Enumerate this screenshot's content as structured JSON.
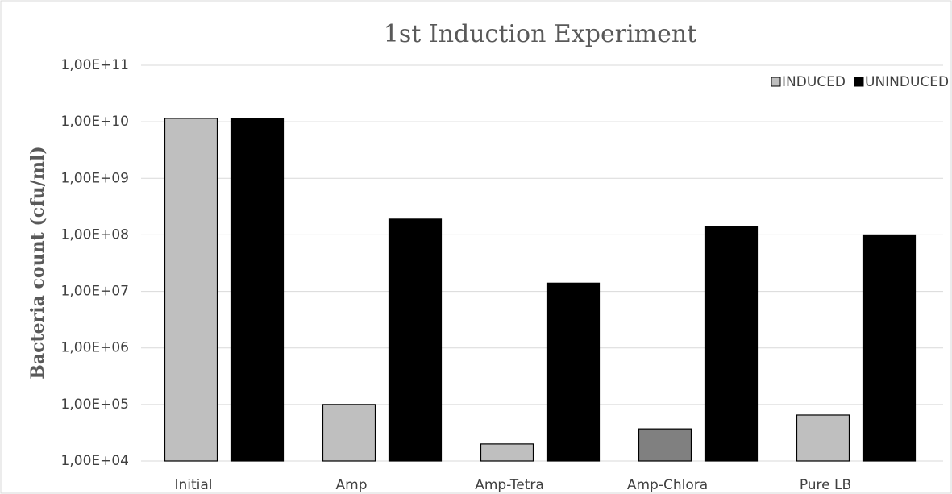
{
  "chart_data": {
    "type": "bar",
    "title": "1st Induction Experiment",
    "y_label": "Bacteria count (cfu/ml)",
    "categories": [
      "Initial",
      "Amp",
      "Amp-Tetra",
      "Amp-Chlora",
      "Pure LB"
    ],
    "series": [
      {
        "name": "INDUCED",
        "color": "#bfbfbf",
        "colors": [
          "#bfbfbf",
          "#bfbfbf",
          "#bfbfbf",
          "#808080",
          "#bfbfbf"
        ],
        "values": [
          11500000000,
          100000,
          20000,
          37000,
          65000
        ]
      },
      {
        "name": "UNINDUCED",
        "color": "#000000",
        "values": [
          11500000000,
          190000000,
          14000000,
          140000000,
          100000000
        ]
      }
    ],
    "log_scale": true,
    "ylim": [
      10000,
      100000000000
    ],
    "yticks": [
      {
        "value": 10000,
        "label": "1,00E+04"
      },
      {
        "value": 100000,
        "label": "1,00E+05"
      },
      {
        "value": 1000000,
        "label": "1,00E+06"
      },
      {
        "value": 10000000,
        "label": "1,00E+07"
      },
      {
        "value": 100000000,
        "label": "1,00E+08"
      },
      {
        "value": 1000000000,
        "label": "1,00E+09"
      },
      {
        "value": 10000000000,
        "label": "1,00E+10"
      },
      {
        "value": 100000000000,
        "label": "1,00E+11"
      }
    ],
    "grid": true,
    "legend": "top-right"
  }
}
